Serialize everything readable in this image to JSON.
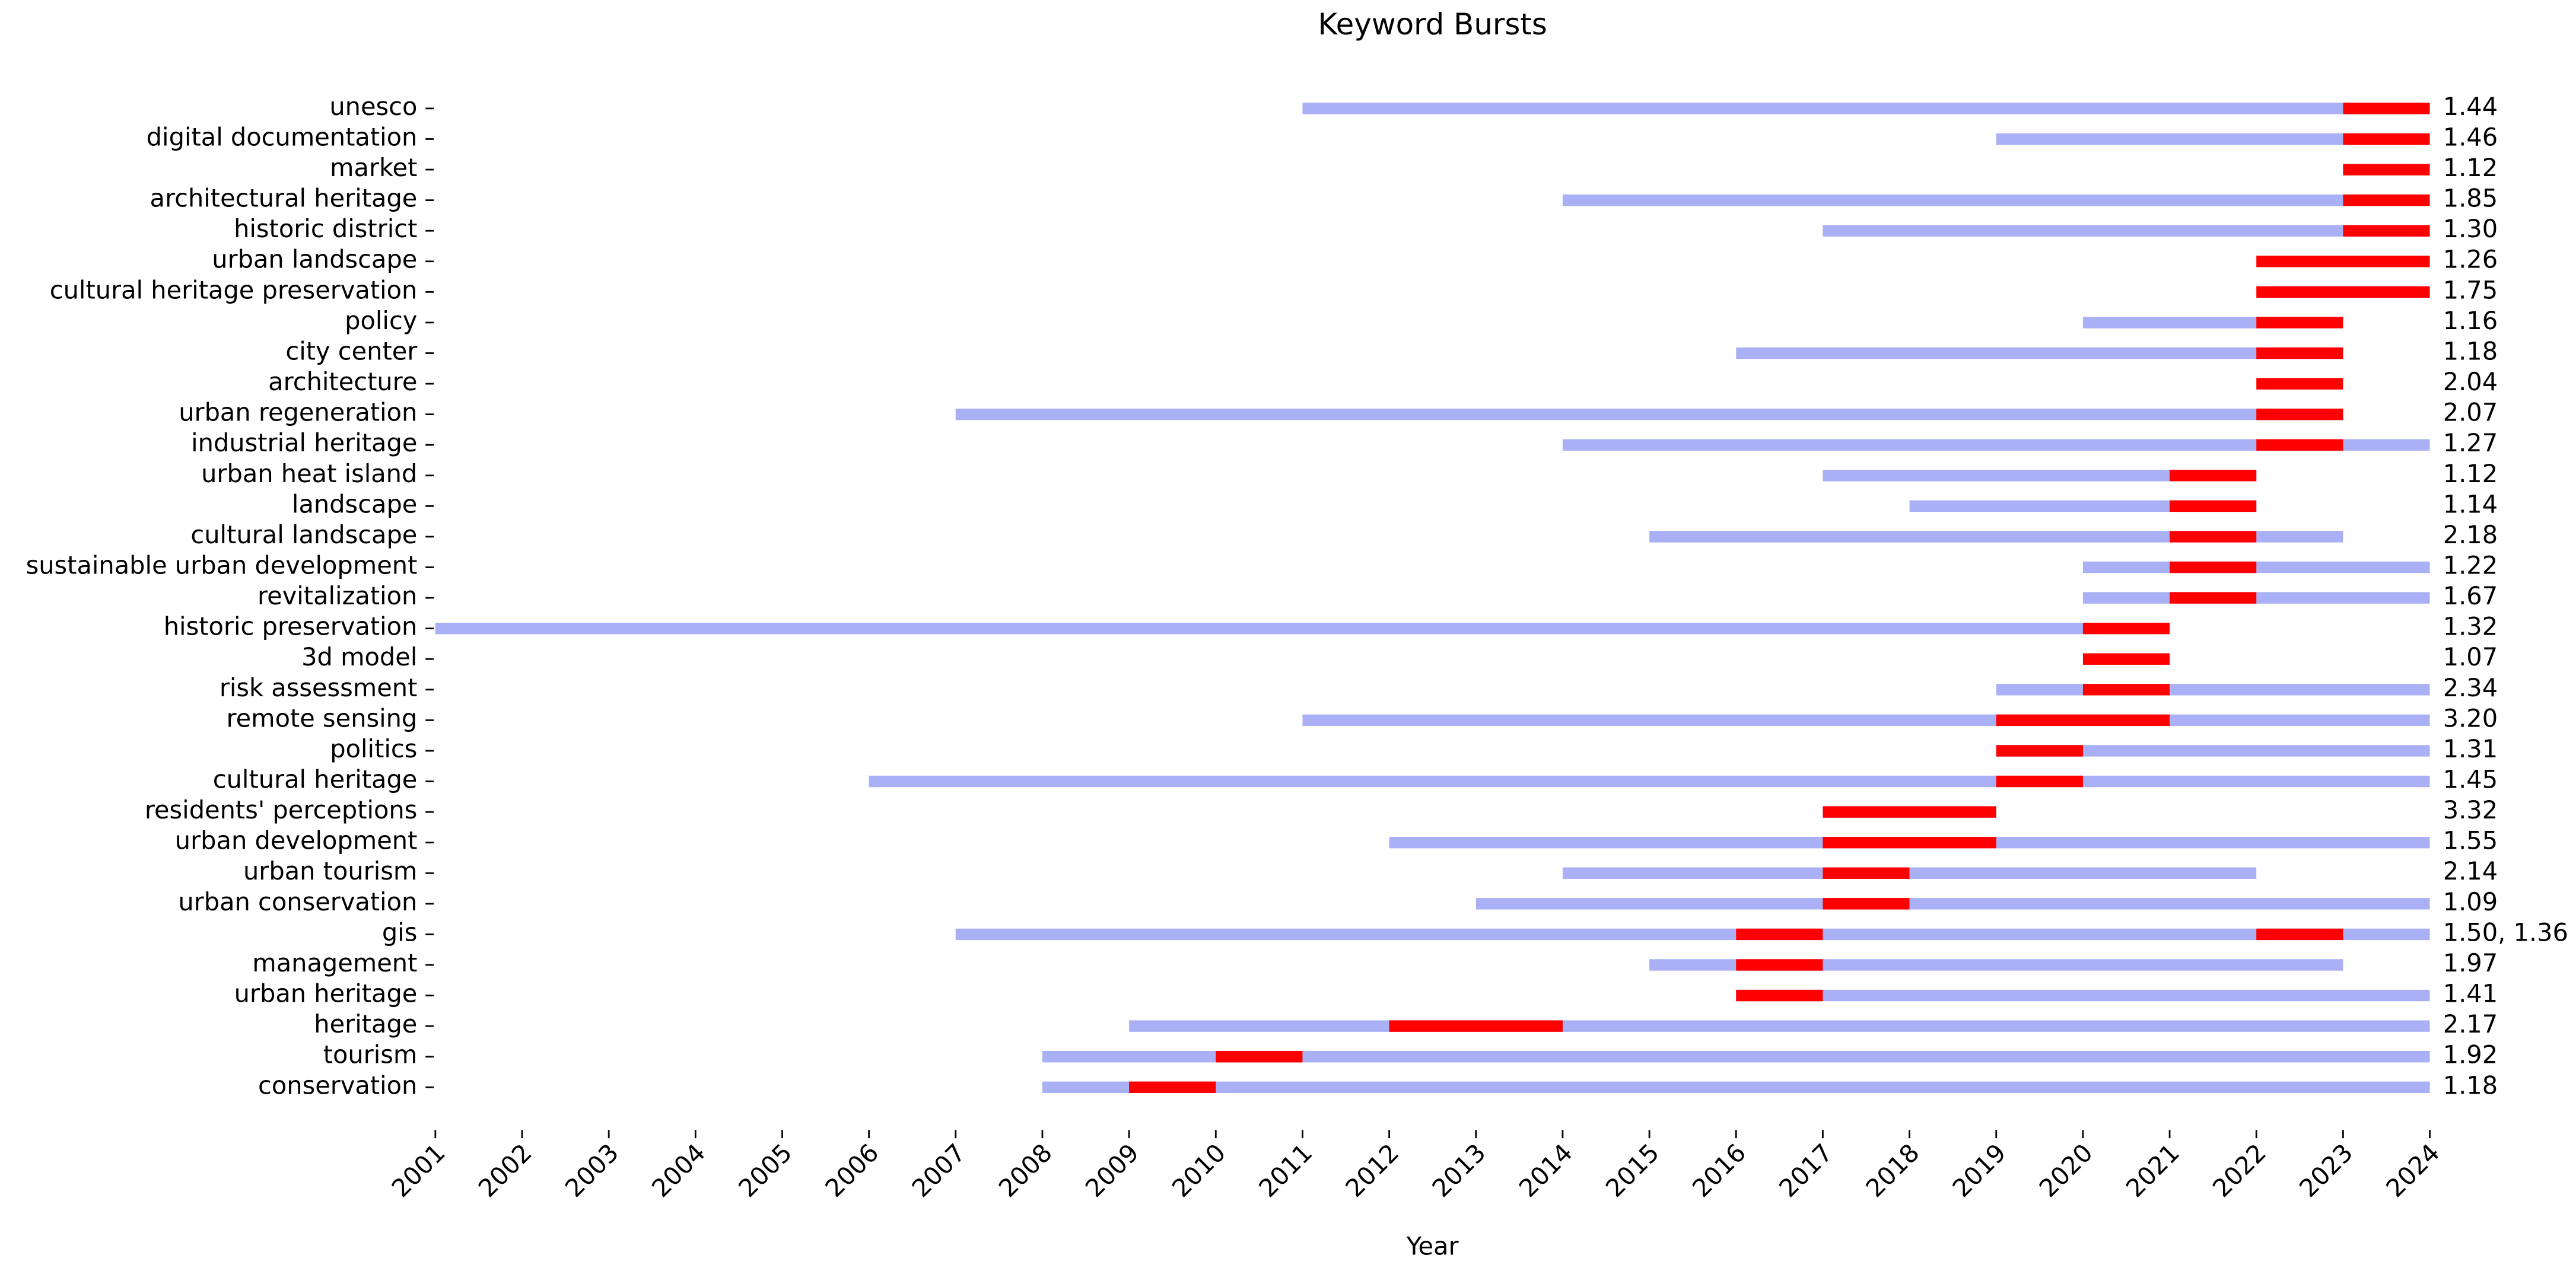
{
  "chart_data": {
    "type": "timeline",
    "title": "Keyword Bursts",
    "xlabel": "Year",
    "xlim": [
      2001,
      2024
    ],
    "xticks": [
      2001,
      2002,
      2003,
      2004,
      2005,
      2006,
      2007,
      2008,
      2009,
      2010,
      2011,
      2012,
      2013,
      2014,
      2015,
      2016,
      2017,
      2018,
      2019,
      2020,
      2021,
      2022,
      2023,
      2024
    ],
    "span_color": "#aab0f5",
    "burst_color": "#ff0000",
    "keywords": [
      "unesco",
      "digital documentation",
      "market",
      "architectural heritage",
      "historic district",
      "urban landscape",
      "cultural heritage preservation",
      "policy",
      "city center",
      "architecture",
      "urban regeneration",
      "industrial heritage",
      "urban heat island",
      "landscape",
      "cultural landscape",
      "sustainable urban development",
      "revitalization",
      "historic preservation",
      "3d model",
      "risk assessment",
      "remote sensing",
      "politics",
      "cultural heritage",
      "residents' perceptions",
      "urban development",
      "urban tourism",
      "urban conservation",
      "gis",
      "management",
      "urban heritage",
      "heritage",
      "tourism",
      "conservation"
    ],
    "spans": [
      [
        2011,
        2024
      ],
      [
        2019,
        2024
      ],
      null,
      [
        2014,
        2024
      ],
      [
        2017,
        2024
      ],
      null,
      null,
      [
        2020,
        2023
      ],
      [
        2016,
        2023
      ],
      null,
      [
        2007,
        2023
      ],
      [
        2014,
        2024
      ],
      [
        2017,
        2022
      ],
      [
        2018,
        2022
      ],
      [
        2015,
        2023
      ],
      [
        2020,
        2024
      ],
      [
        2020,
        2024
      ],
      [
        2001,
        2021
      ],
      null,
      [
        2019,
        2024
      ],
      [
        2011,
        2024
      ],
      [
        2019,
        2024
      ],
      [
        2006,
        2024
      ],
      null,
      [
        2012,
        2024
      ],
      [
        2014,
        2022
      ],
      [
        2013,
        2024
      ],
      [
        2007,
        2024
      ],
      [
        2015,
        2023
      ],
      [
        2016,
        2024
      ],
      [
        2009,
        2024
      ],
      [
        2008,
        2024
      ],
      [
        2008,
        2024
      ]
    ],
    "bursts": [
      [
        [
          2023,
          2024
        ]
      ],
      [
        [
          2023,
          2024
        ]
      ],
      [
        [
          2023,
          2024
        ]
      ],
      [
        [
          2023,
          2024
        ]
      ],
      [
        [
          2023,
          2024
        ]
      ],
      [
        [
          2022,
          2024
        ]
      ],
      [
        [
          2022,
          2024
        ]
      ],
      [
        [
          2022,
          2023
        ]
      ],
      [
        [
          2022,
          2023
        ]
      ],
      [
        [
          2022,
          2023
        ]
      ],
      [
        [
          2022,
          2023
        ]
      ],
      [
        [
          2022,
          2023
        ]
      ],
      [
        [
          2021,
          2022
        ]
      ],
      [
        [
          2021,
          2022
        ]
      ],
      [
        [
          2021,
          2022
        ]
      ],
      [
        [
          2021,
          2022
        ]
      ],
      [
        [
          2021,
          2022
        ]
      ],
      [
        [
          2020,
          2021
        ]
      ],
      [
        [
          2020,
          2021
        ]
      ],
      [
        [
          2020,
          2021
        ]
      ],
      [
        [
          2019,
          2021
        ]
      ],
      [
        [
          2019,
          2020
        ]
      ],
      [
        [
          2019,
          2020
        ]
      ],
      [
        [
          2017,
          2019
        ]
      ],
      [
        [
          2017,
          2019
        ]
      ],
      [
        [
          2017,
          2018
        ]
      ],
      [
        [
          2017,
          2018
        ]
      ],
      [
        [
          2016,
          2017
        ],
        [
          2022,
          2023
        ]
      ],
      [
        [
          2016,
          2017
        ]
      ],
      [
        [
          2016,
          2017
        ]
      ],
      [
        [
          2012,
          2014
        ]
      ],
      [
        [
          2010,
          2011
        ]
      ],
      [
        [
          2009,
          2010
        ]
      ]
    ],
    "strengths": [
      [
        1.44
      ],
      [
        1.46
      ],
      [
        1.12
      ],
      [
        1.85
      ],
      [
        1.3
      ],
      [
        1.26
      ],
      [
        1.75
      ],
      [
        1.16
      ],
      [
        1.18
      ],
      [
        2.04
      ],
      [
        2.07
      ],
      [
        1.27
      ],
      [
        1.12
      ],
      [
        1.14
      ],
      [
        2.18
      ],
      [
        1.22
      ],
      [
        1.67
      ],
      [
        1.32
      ],
      [
        1.07
      ],
      [
        2.34
      ],
      [
        3.2
      ],
      [
        1.31
      ],
      [
        1.45
      ],
      [
        3.32
      ],
      [
        1.55
      ],
      [
        2.14
      ],
      [
        1.09
      ],
      [
        1.5,
        1.36
      ],
      [
        1.97
      ],
      [
        1.41
      ],
      [
        2.17
      ],
      [
        1.92
      ],
      [
        1.18
      ]
    ],
    "value_labels": [
      "1.44",
      "1.46",
      "1.12",
      "1.85",
      "1.30",
      "1.26",
      "1.75",
      "1.16",
      "1.18",
      "2.04",
      "2.07",
      "1.27",
      "1.12",
      "1.14",
      "2.18",
      "1.22",
      "1.67",
      "1.32",
      "1.07",
      "2.34",
      "3.20",
      "1.31",
      "1.45",
      "3.32",
      "1.55",
      "2.14",
      "1.09",
      "1.50, 1.36",
      "1.97",
      "1.41",
      "2.17",
      "1.92",
      "1.18"
    ]
  }
}
